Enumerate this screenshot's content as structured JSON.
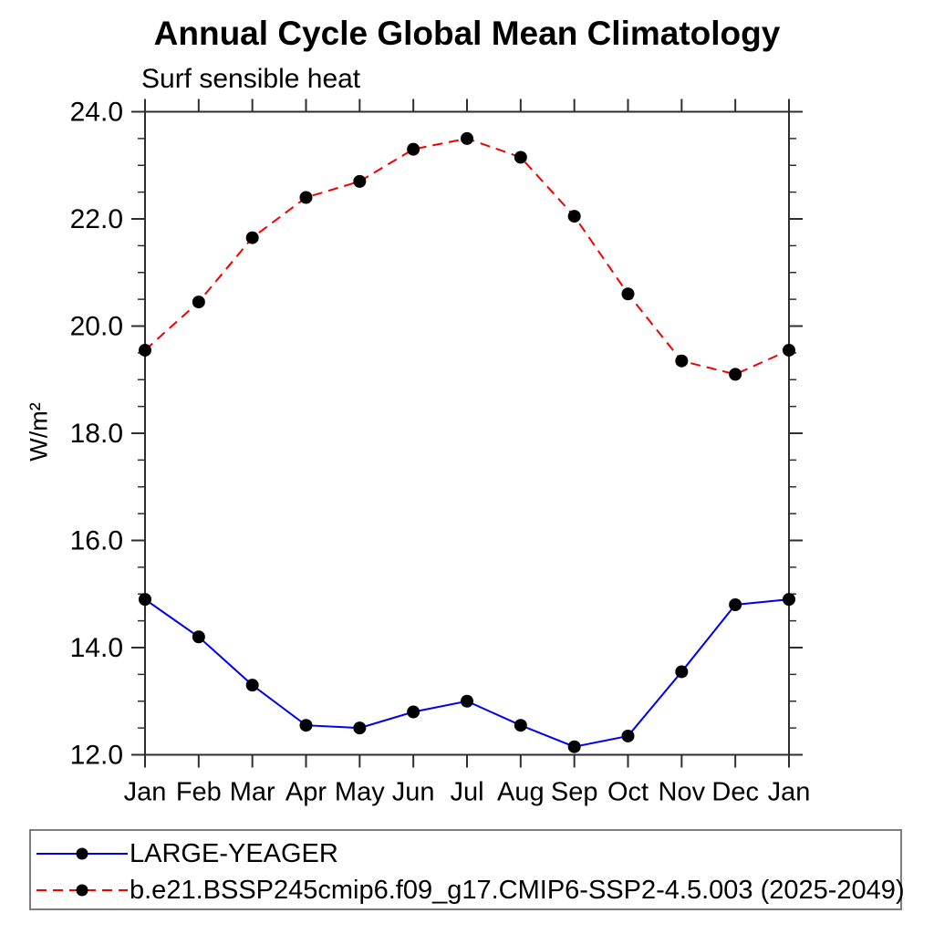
{
  "chart_data": {
    "type": "line",
    "title": "Annual Cycle Global Mean Climatology",
    "subtitle": "Surf sensible heat",
    "xlabel": "",
    "ylabel": "W/m²",
    "categories": [
      "Jan",
      "Feb",
      "Mar",
      "Apr",
      "May",
      "Jun",
      "Jul",
      "Aug",
      "Sep",
      "Oct",
      "Nov",
      "Dec",
      "Jan"
    ],
    "series": [
      {
        "name": "LARGE-YEAGER",
        "color": "#0000ee",
        "line_style": "solid",
        "marker": "filled-circle",
        "marker_color": "#000000",
        "values": [
          14.9,
          14.2,
          13.3,
          12.55,
          12.5,
          12.8,
          13.0,
          12.55,
          12.15,
          12.35,
          13.55,
          14.8,
          14.9
        ]
      },
      {
        "name": "b.e21.BSSP245cmip6.f09_g17.CMIP6-SSP2-4.5.003 (2025-2049)",
        "color": "#f00000",
        "line_style": "dashed",
        "marker": "filled-circle",
        "marker_color": "#000000",
        "values": [
          19.55,
          20.45,
          21.65,
          22.4,
          22.7,
          23.3,
          23.5,
          23.15,
          22.05,
          20.6,
          19.35,
          19.1,
          19.55
        ]
      }
    ],
    "ylim": [
      12.0,
      24.0
    ],
    "ytick_values": [
      12,
      14,
      16,
      18,
      20,
      22,
      24
    ],
    "ytick_labels": [
      "12.0",
      "14.0",
      "16.0",
      "18.0",
      "20.0",
      "22.0",
      "24.0"
    ],
    "y_minor_step": 0.5,
    "grid": "off",
    "frame": "box",
    "tick_direction": "out",
    "legend_position": "bottom",
    "axis_color": "#2e2e2e"
  }
}
